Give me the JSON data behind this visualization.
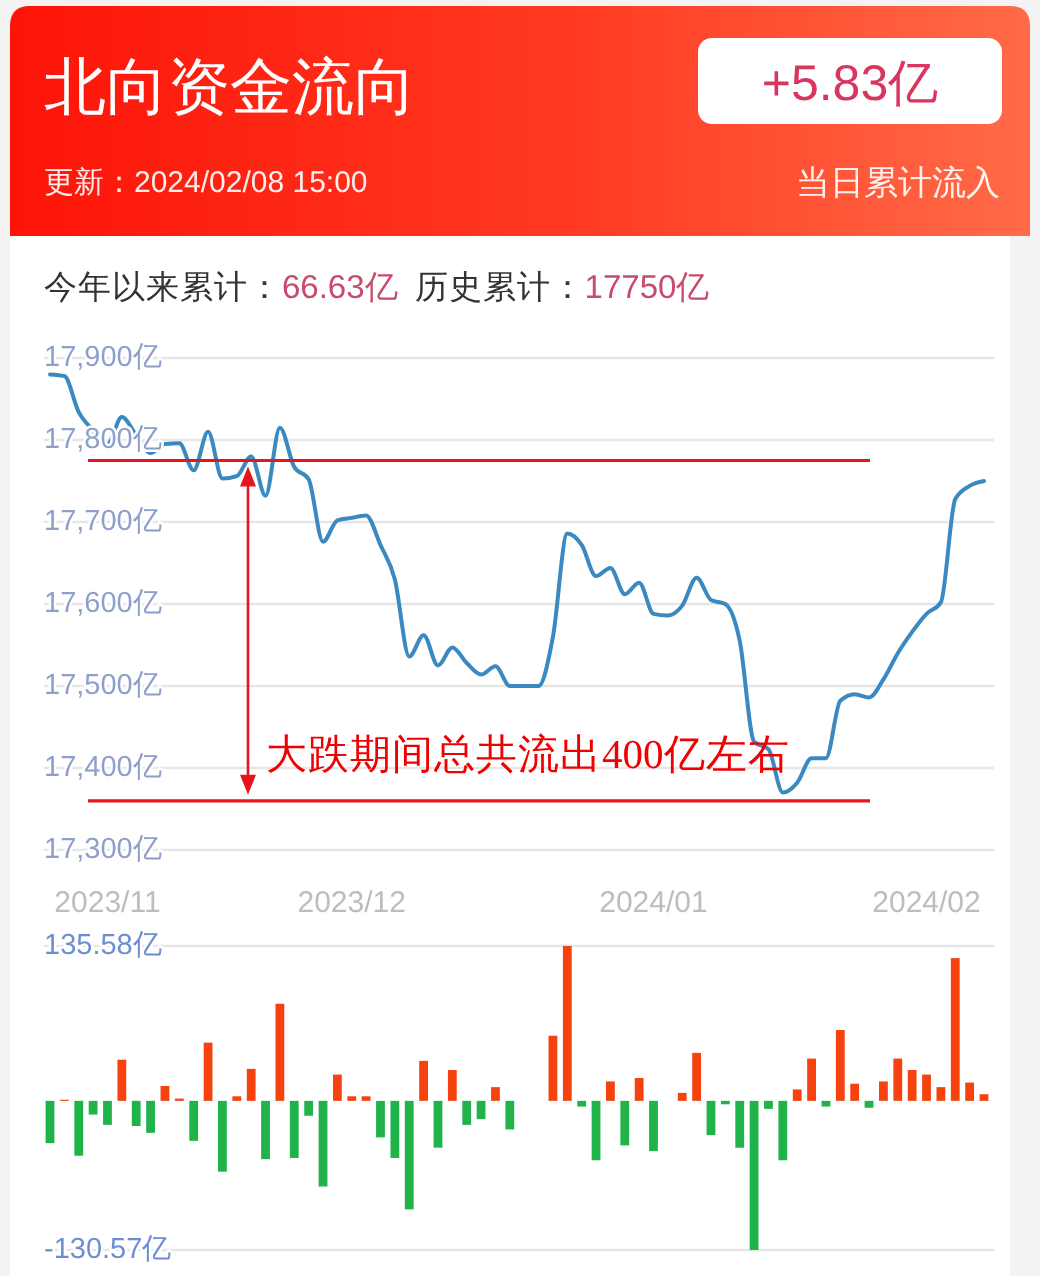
{
  "chart_data": [
    {
      "type": "line",
      "title": "北向资金流向",
      "subtitle": "更新：2024/02/08 15:00",
      "annotations": [
        "+5.83亿",
        "当日累计流入",
        "今年以来累计：",
        "66.63亿",
        "历史累计：",
        "17750亿",
        {
          "text": "大跌期间总共流出400亿左右",
          "y": 17360
        }
      ],
      "categories": [
        null,
        null,
        null,
        null,
        "2023/11",
        null,
        null,
        null,
        null,
        null,
        null,
        null,
        null,
        null,
        null,
        null,
        null,
        null,
        null,
        null,
        null,
        "2023/12",
        null,
        null,
        null,
        null,
        null,
        null,
        null,
        null,
        null,
        null,
        null,
        null,
        null,
        null,
        null,
        null,
        null,
        null,
        null,
        null,
        "2024/01",
        null,
        null,
        null,
        null,
        null,
        null,
        null,
        null,
        null,
        null,
        null,
        null,
        null,
        null,
        null,
        null,
        null,
        null,
        "2024/02",
        null,
        null,
        null,
        null
      ],
      "values": [
        17880,
        17878,
        17834,
        17812,
        17795,
        17828,
        17806,
        17784,
        17795,
        17796,
        17763,
        17810,
        17753,
        17756,
        17780,
        17732,
        17815,
        17767,
        17752,
        17676,
        17702,
        17705,
        17708,
        17672,
        17630,
        17536,
        17562,
        17525,
        17547,
        17528,
        17514,
        17524,
        17500,
        17500,
        17500,
        17560,
        17686,
        17672,
        17634,
        17644,
        17612,
        17626,
        17588,
        17586,
        17598,
        17632,
        17605,
        17600,
        17555,
        17432,
        17423,
        17370,
        17382,
        17412,
        17412,
        17482,
        17490,
        17486,
        17508,
        17540,
        17566,
        17588,
        17602,
        17728,
        17744,
        17750
      ],
      "color": "#3a89c1",
      "ylim": [
        17300,
        17900
      ],
      "yticks": [
        {
          "value": 17300,
          "label": "17,300亿"
        },
        {
          "value": 17400,
          "label": "17,400亿"
        },
        {
          "value": 17500,
          "label": "17,500亿"
        },
        {
          "value": 17600,
          "label": "17,600亿"
        },
        {
          "value": 17700,
          "label": "17,700亿"
        },
        {
          "value": 17800,
          "label": "17,800亿"
        },
        {
          "value": 17900,
          "label": "17,900亿"
        }
      ],
      "grid": "y",
      "ref_lines": [
        {
          "axis": "y",
          "value": 17775,
          "color": "#e8141b"
        },
        {
          "axis": "y",
          "value": 17360,
          "color": "#e8141b"
        }
      ]
    },
    {
      "type": "bar",
      "categories": [
        null,
        null,
        null,
        null,
        null,
        null,
        null,
        null,
        null,
        null,
        null,
        null,
        null,
        null,
        null,
        null,
        null,
        null,
        null,
        null,
        null,
        null,
        null,
        null,
        null,
        null,
        null,
        null,
        null,
        null,
        null,
        null,
        null,
        null,
        null,
        null,
        null,
        null,
        null,
        null,
        null,
        null,
        null,
        null,
        null,
        null,
        null,
        null,
        null,
        null,
        null,
        null,
        null,
        null,
        null,
        null,
        null,
        null,
        null,
        null,
        null,
        null,
        null,
        null,
        null,
        null
      ],
      "values": [
        -37,
        1,
        -48,
        -12,
        -21,
        36,
        -22,
        -28,
        13,
        2,
        -35,
        51,
        -62,
        4,
        28,
        -51,
        85,
        -50,
        -13,
        -75,
        23,
        4,
        4,
        -32,
        -50,
        -95,
        35,
        -41,
        27,
        -21,
        -16,
        12,
        -25,
        null,
        null,
        57,
        135.58,
        -5,
        -52,
        17,
        -39,
        20,
        -44,
        null,
        7,
        42,
        -30,
        -3,
        -41,
        -130.57,
        -7,
        -52,
        10,
        37,
        -5,
        62,
        15,
        -6,
        17,
        37,
        27,
        23,
        12,
        125,
        16,
        5.83
      ],
      "colors": [
        "#1fb34a",
        "#f5420f",
        "#1fb34a",
        "#1fb34a",
        "#1fb34a",
        "#f5420f",
        "#1fb34a",
        "#1fb34a",
        "#f5420f",
        "#f5420f",
        "#1fb34a",
        "#f5420f",
        "#1fb34a",
        "#f5420f",
        "#f5420f",
        "#1fb34a",
        "#f5420f",
        "#1fb34a",
        "#1fb34a",
        "#1fb34a",
        "#f5420f",
        "#f5420f",
        "#f5420f",
        "#1fb34a",
        "#1fb34a",
        "#1fb34a",
        "#f5420f",
        "#1fb34a",
        "#f5420f",
        "#1fb34a",
        "#1fb34a",
        "#f5420f",
        "#1fb34a",
        null,
        null,
        "#f5420f",
        "#f5420f",
        "#1fb34a",
        "#1fb34a",
        "#f5420f",
        "#1fb34a",
        "#f5420f",
        "#1fb34a",
        null,
        "#f5420f",
        "#f5420f",
        "#1fb34a",
        "#1fb34a",
        "#1fb34a",
        "#1fb34a",
        "#1fb34a",
        "#1fb34a",
        "#f5420f",
        "#f5420f",
        "#1fb34a",
        "#f5420f",
        "#f5420f",
        "#1fb34a",
        "#f5420f",
        "#f5420f",
        "#f5420f",
        "#f5420f",
        "#f5420f",
        "#f5420f",
        "#f5420f",
        "#f5420f"
      ],
      "ylim": [
        -130.57,
        135.58
      ],
      "yticks": [
        {
          "value": -130.57,
          "label": "-130.57亿"
        },
        {
          "value": 135.58,
          "label": "135.58亿"
        }
      ]
    }
  ]
}
